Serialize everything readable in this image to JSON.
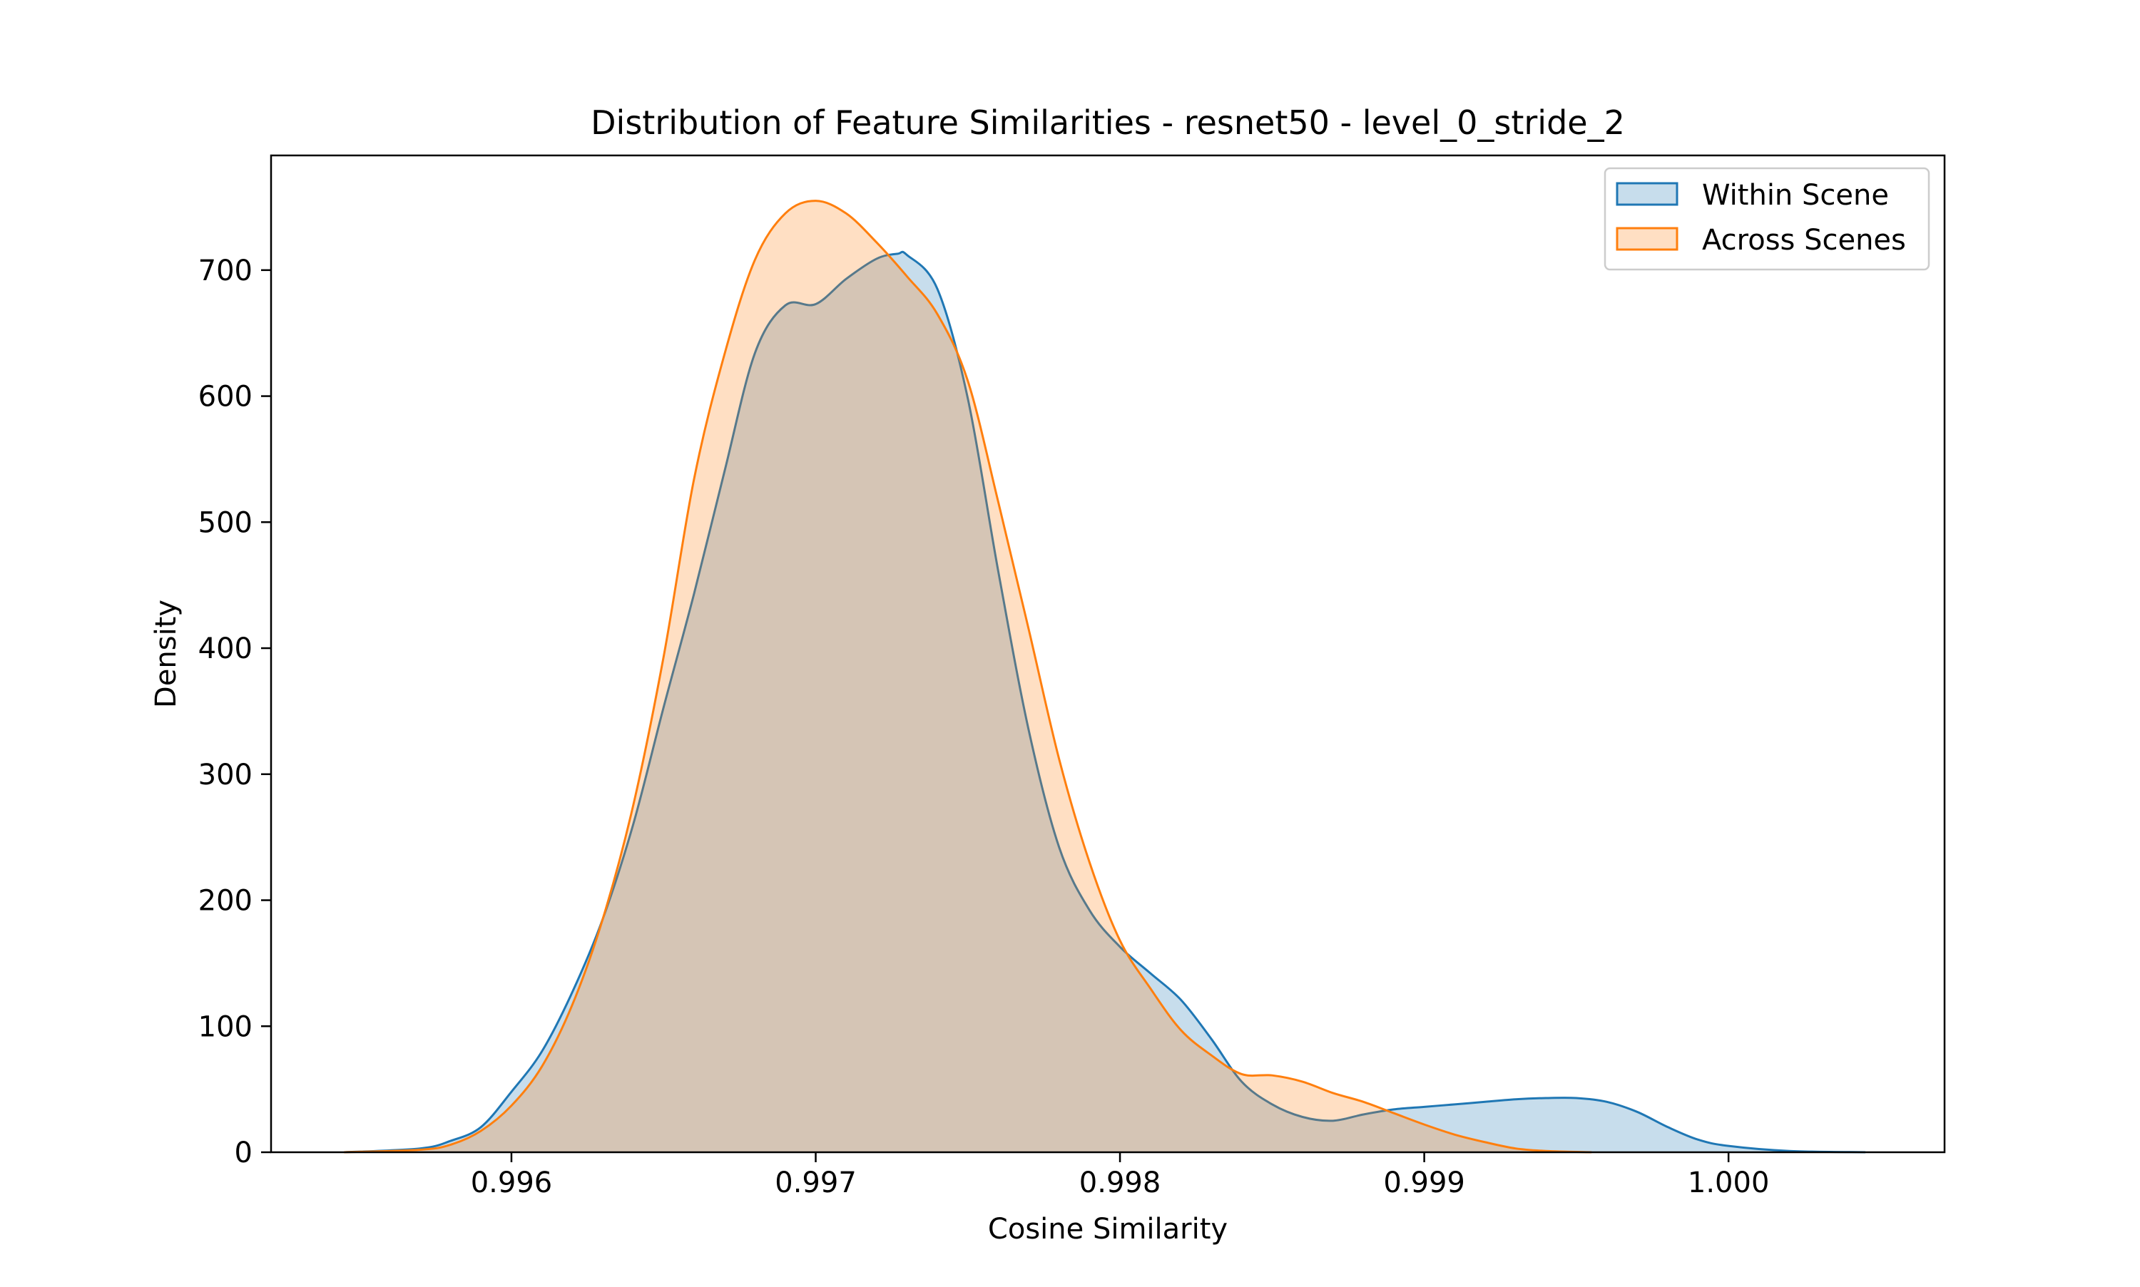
{
  "colors": {
    "within": "#1f77b4",
    "across": "#ff7f0e"
  },
  "chart_data": {
    "type": "area",
    "title": "Distribution of Feature Similarities - resnet50 - level_0_stride_2",
    "xlabel": "Cosine Similarity",
    "ylabel": "Density",
    "xlim": [
      0.99521,
      1.00071
    ],
    "ylim": [
      0,
      791
    ],
    "x_ticks": [
      0.996,
      0.997,
      0.998,
      0.999,
      1.0
    ],
    "x_tick_labels": [
      "0.996",
      "0.997",
      "0.998",
      "0.999",
      "1.000"
    ],
    "y_ticks": [
      0,
      100,
      200,
      300,
      400,
      500,
      600,
      700
    ],
    "y_tick_labels": [
      "0",
      "100",
      "200",
      "300",
      "400",
      "500",
      "600",
      "700"
    ],
    "legend_position": "top-right",
    "grid": false,
    "fill_opacity": 0.25,
    "series": [
      {
        "name": "Within Scene",
        "color_key": "within",
        "points": [
          [
            0.99545,
            0
          ],
          [
            0.9957,
            3
          ],
          [
            0.9958,
            9
          ],
          [
            0.9959,
            20
          ],
          [
            0.996,
            48
          ],
          [
            0.9961,
            80
          ],
          [
            0.9962,
            127
          ],
          [
            0.9963,
            185
          ],
          [
            0.9964,
            260
          ],
          [
            0.9965,
            353
          ],
          [
            0.9966,
            443
          ],
          [
            0.9967,
            540
          ],
          [
            0.9968,
            634
          ],
          [
            0.9969,
            672
          ],
          [
            0.997,
            673
          ],
          [
            0.9971,
            693
          ],
          [
            0.9972,
            709
          ],
          [
            0.99727,
            713
          ],
          [
            0.9973,
            712
          ],
          [
            0.9974,
            685
          ],
          [
            0.9975,
            598
          ],
          [
            0.9976,
            461
          ],
          [
            0.9977,
            335
          ],
          [
            0.9978,
            242
          ],
          [
            0.9979,
            192
          ],
          [
            0.998,
            163
          ],
          [
            0.9981,
            142
          ],
          [
            0.9982,
            121
          ],
          [
            0.9983,
            90
          ],
          [
            0.9984,
            56
          ],
          [
            0.9985,
            38
          ],
          [
            0.9986,
            28
          ],
          [
            0.9987,
            25
          ],
          [
            0.9988,
            30
          ],
          [
            0.9989,
            34
          ],
          [
            0.999,
            36
          ],
          [
            0.9991,
            38
          ],
          [
            0.9992,
            40
          ],
          [
            0.9993,
            42
          ],
          [
            0.9994,
            43
          ],
          [
            0.9995,
            43
          ],
          [
            0.9996,
            40
          ],
          [
            0.9997,
            32
          ],
          [
            0.9998,
            20
          ],
          [
            0.9999,
            10
          ],
          [
            1.0,
            5
          ],
          [
            1.0002,
            1
          ],
          [
            1.00045,
            0
          ]
        ]
      },
      {
        "name": "Across Scenes",
        "color_key": "across",
        "points": [
          [
            0.99545,
            0
          ],
          [
            0.9957,
            2
          ],
          [
            0.9958,
            6
          ],
          [
            0.9959,
            17
          ],
          [
            0.996,
            37
          ],
          [
            0.9961,
            68
          ],
          [
            0.9962,
            117
          ],
          [
            0.9963,
            185
          ],
          [
            0.9964,
            275
          ],
          [
            0.9965,
            393
          ],
          [
            0.9966,
            534
          ],
          [
            0.9967,
            633
          ],
          [
            0.9968,
            708
          ],
          [
            0.9969,
            745
          ],
          [
            0.997,
            755
          ],
          [
            0.9971,
            745
          ],
          [
            0.9972,
            722
          ],
          [
            0.9973,
            695
          ],
          [
            0.9974,
            665
          ],
          [
            0.9975,
            612
          ],
          [
            0.9976,
            516
          ],
          [
            0.9977,
            415
          ],
          [
            0.9978,
            312
          ],
          [
            0.9979,
            230
          ],
          [
            0.998,
            168
          ],
          [
            0.9981,
            130
          ],
          [
            0.9982,
            97
          ],
          [
            0.9983,
            77
          ],
          [
            0.9984,
            62
          ],
          [
            0.9985,
            61
          ],
          [
            0.9986,
            56
          ],
          [
            0.9987,
            47
          ],
          [
            0.9988,
            40
          ],
          [
            0.9989,
            31
          ],
          [
            0.999,
            22
          ],
          [
            0.9991,
            14
          ],
          [
            0.9992,
            8
          ],
          [
            0.9993,
            3
          ],
          [
            0.9994,
            1
          ],
          [
            0.99955,
            0
          ]
        ]
      }
    ]
  }
}
